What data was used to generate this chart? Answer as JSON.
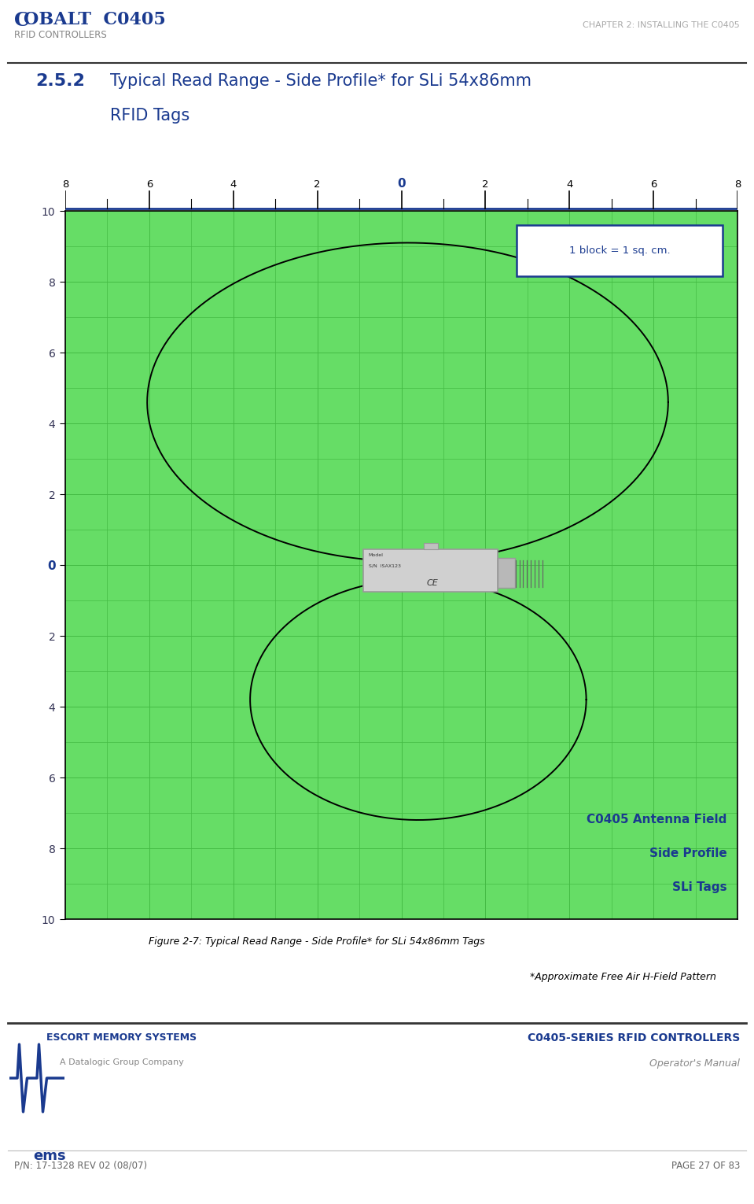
{
  "header_title_C": "C",
  "header_title_rest": "OBALT  C0405",
  "header_subtitle": "RFID CONTROLLERS",
  "header_right": "CHAPTER 2: INSTALLING THE C0405",
  "section_number": "2.5.2",
  "section_title_line1": "Typical Read Range - Side Profile* for SLi 54x86mm",
  "section_title_line2": "RFID Tags",
  "figure_caption": "Figure 2-7: Typical Read Range - Side Profile* for SLi 54x86mm Tags",
  "footnote": "*Approximate Free Air H-Field Pattern",
  "block_label": "1 block = 1 sq. cm.",
  "antenna_label1": "C0405 Antenna Field",
  "antenna_label2": "Side Profile",
  "antenna_label3": "SLi Tags",
  "footer_left1": "ESCORT MEMORY SYSTEMS",
  "footer_left2": "A Datalogic Group Company",
  "footer_right1": "C0405-SERIES RFID CONTROLLERS",
  "footer_right2": "Operator's Manual",
  "footer_bottom_left": "P/N: 17-1328 REV 02 (08/07)",
  "footer_bottom_right": "PAGE 27 OF 83",
  "bg_color": "#66dd66",
  "grid_color": "#44bb44",
  "xlim": [
    -8,
    8
  ],
  "ylim": [
    -10,
    10
  ],
  "xticks": [
    -8,
    -6,
    -4,
    -2,
    0,
    2,
    4,
    6,
    8
  ],
  "yticks": [
    -10,
    -8,
    -6,
    -4,
    -2,
    0,
    2,
    4,
    6,
    8,
    10
  ],
  "cobalt_color": "#1a3a8f",
  "chapter_color": "#aaaaaa",
  "dark_line": "#222222"
}
